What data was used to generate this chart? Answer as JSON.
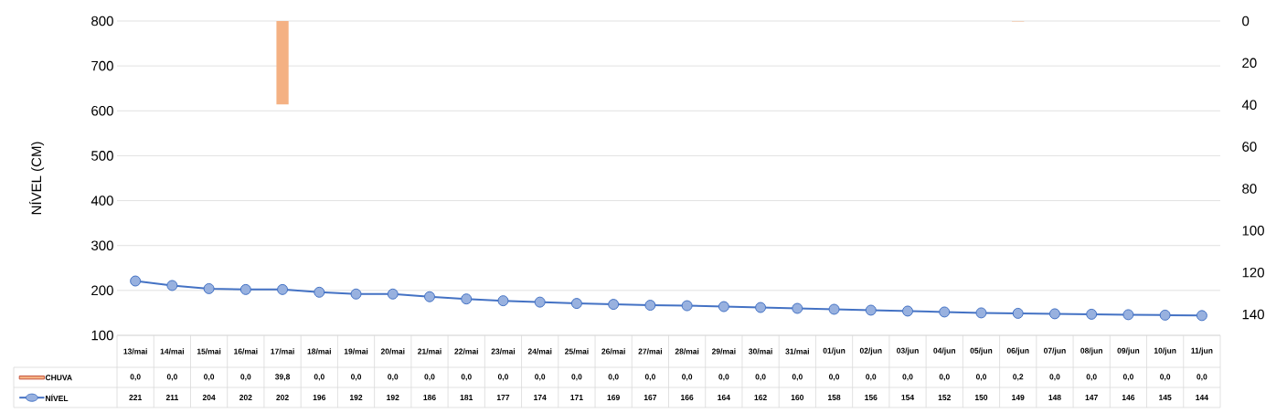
{
  "chart_data": {
    "type": "bar",
    "ylabel": "NÍVEL (CM)",
    "categories": [
      "13/mai",
      "14/mai",
      "15/mai",
      "16/mai",
      "17/mai",
      "18/mai",
      "19/mai",
      "20/mai",
      "21/mai",
      "22/mai",
      "23/mai",
      "24/mai",
      "25/mai",
      "26/mai",
      "27/mai",
      "28/mai",
      "29/mai",
      "30/mai",
      "31/mai",
      "01/jun",
      "02/jun",
      "03/jun",
      "04/jun",
      "05/jun",
      "06/jun",
      "07/jun",
      "08/jun",
      "09/jun",
      "10/jun",
      "11/jun"
    ],
    "series": [
      {
        "name": "CHUVA",
        "axis": "y2",
        "color": "#f4b183",
        "values": [
          0,
          0,
          0,
          0,
          39.8,
          0,
          0,
          0,
          0,
          0,
          0,
          0,
          0,
          0,
          0,
          0,
          0,
          0,
          0,
          0,
          0,
          0,
          0,
          0,
          0.2,
          0,
          0,
          0,
          0,
          0
        ],
        "value_labels": [
          "0,0",
          "0,0",
          "0,0",
          "0,0",
          "39,8",
          "0,0",
          "0,0",
          "0,0",
          "0,0",
          "0,0",
          "0,0",
          "0,0",
          "0,0",
          "0,0",
          "0,0",
          "0,0",
          "0,0",
          "0,0",
          "0,0",
          "0,0",
          "0,0",
          "0,0",
          "0,0",
          "0,0",
          "0,2",
          "0,0",
          "0,0",
          "0,0",
          "0,0",
          "0,0"
        ]
      },
      {
        "name": "NÍVEL",
        "type": "line",
        "color": "#4472c4",
        "values": [
          221,
          211,
          204,
          202,
          202,
          196,
          192,
          192,
          186,
          181,
          177,
          174,
          171,
          169,
          167,
          166,
          164,
          162,
          160,
          158,
          156,
          154,
          152,
          150,
          149,
          148,
          147,
          146,
          145,
          144
        ],
        "value_labels": [
          "221",
          "211",
          "204",
          "202",
          "202",
          "196",
          "192",
          "192",
          "186",
          "181",
          "177",
          "174",
          "171",
          "169",
          "167",
          "166",
          "164",
          "162",
          "160",
          "158",
          "156",
          "154",
          "152",
          "150",
          "149",
          "148",
          "147",
          "146",
          "145",
          "144"
        ]
      }
    ],
    "ylim": [
      100,
      800
    ],
    "yticks": [
      100,
      200,
      300,
      400,
      500,
      600,
      700,
      800
    ],
    "y2lim": [
      150,
      0
    ],
    "y2ticks": [
      0,
      20,
      40,
      60,
      80,
      100,
      120,
      140
    ],
    "grid": "y",
    "legend": "bottom left",
    "marker": "circle",
    "line_style": "solid"
  }
}
